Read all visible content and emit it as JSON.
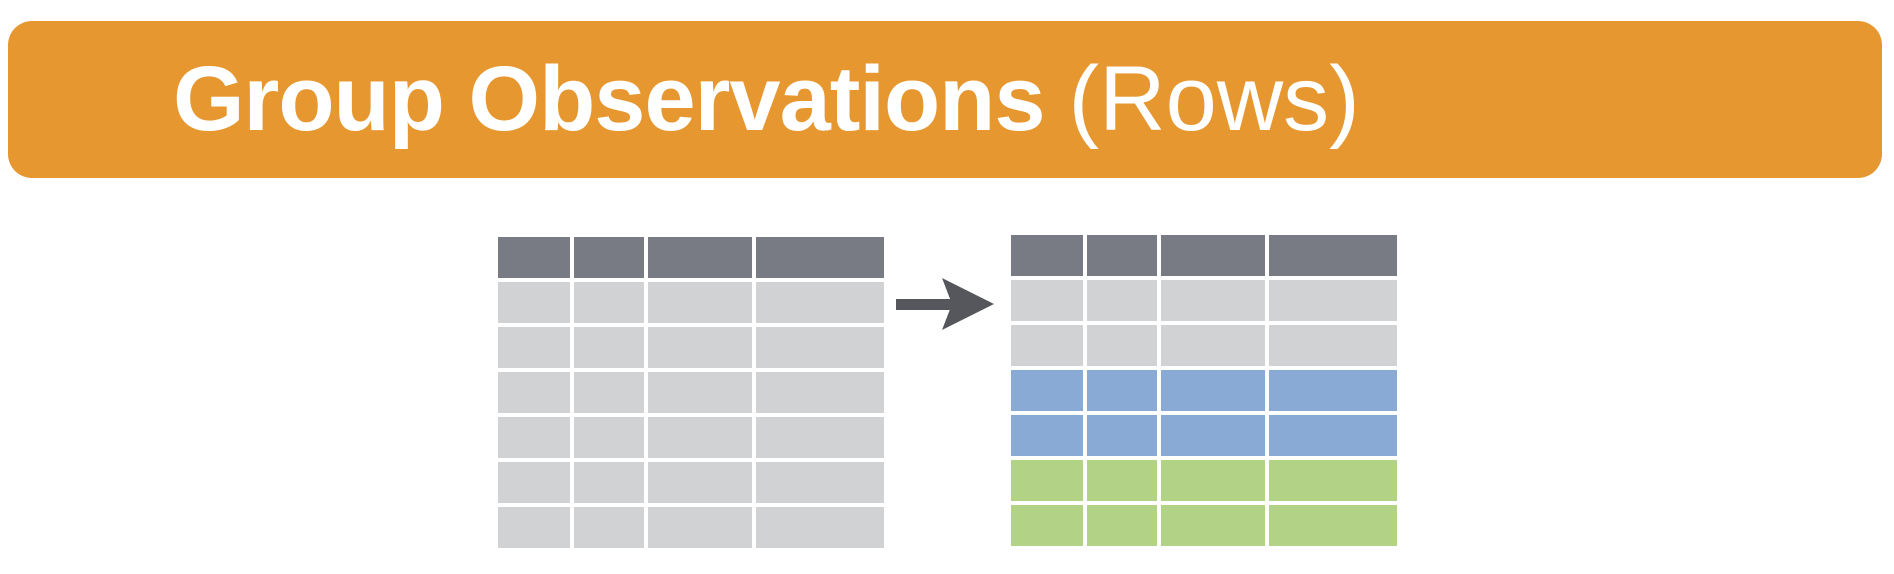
{
  "title": {
    "bold": "Group Observations",
    "normal": "(Rows)"
  },
  "colors": {
    "banner": "#e69730",
    "header": "#787b84",
    "row": "#d0d2d4",
    "group_blue": "#88aad4",
    "group_green": "#b2d385",
    "arrow": "#55575c"
  },
  "tables": {
    "input": {
      "columns": 4,
      "rows": [
        "header",
        "row",
        "row",
        "row",
        "row",
        "row",
        "row"
      ]
    },
    "output": {
      "columns": 4,
      "rows": [
        "header",
        "row",
        "row",
        "group_blue",
        "group_blue",
        "group_green",
        "group_green"
      ]
    }
  },
  "icons": {
    "arrow": "right-arrow-icon"
  }
}
